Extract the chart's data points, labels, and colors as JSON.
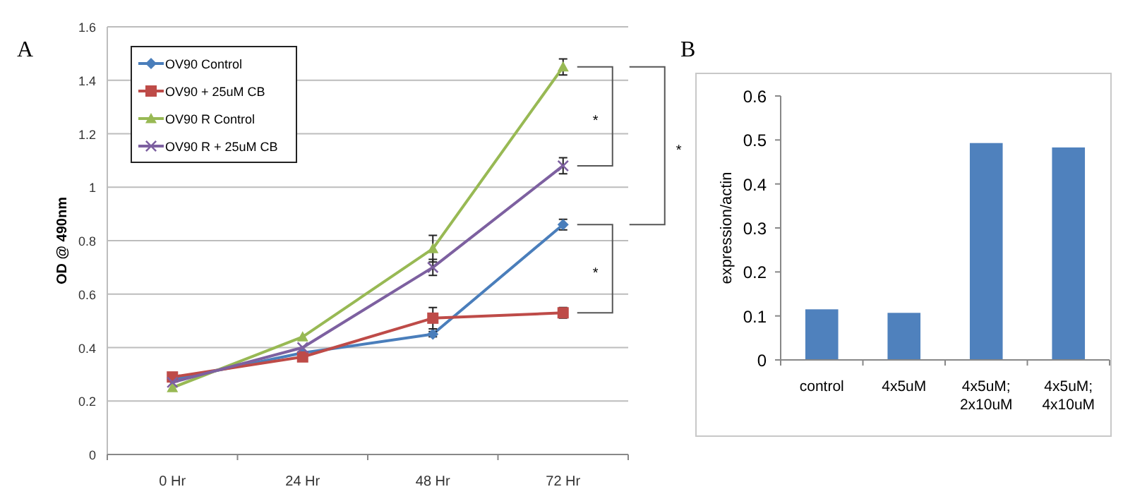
{
  "chart_data": [
    {
      "type": "line",
      "title": "A",
      "ylabel": "OD @ 490nm",
      "categories": [
        "0 Hr",
        "24 Hr",
        "48 Hr",
        "72 Hr"
      ],
      "ylim": [
        0,
        1.6
      ],
      "yticks": [
        0,
        0.2,
        0.4,
        0.6,
        0.8,
        1,
        1.2,
        1.4,
        1.6
      ],
      "grid": "y",
      "legend": "top left",
      "annotations": [
        "*",
        "*",
        "*"
      ],
      "series": [
        {
          "name": "OV90 Control",
          "color": "#4a7ebb",
          "marker": "diamond",
          "values": [
            0.28,
            0.38,
            0.45,
            0.86
          ],
          "errors": [
            null,
            null,
            0.01,
            0.02
          ]
        },
        {
          "name": "OV90 + 25uM CB",
          "color": "#be4b48",
          "marker": "square",
          "values": [
            0.29,
            0.365,
            0.51,
            0.53
          ],
          "errors": [
            null,
            null,
            0.04,
            0.02
          ]
        },
        {
          "name": "OV90 R Control",
          "color": "#98b954",
          "marker": "triangle",
          "values": [
            0.25,
            0.44,
            0.77,
            1.45
          ],
          "errors": [
            null,
            null,
            0.05,
            0.03
          ]
        },
        {
          "name": "OV90 R + 25uM CB",
          "color": "#7d60a0",
          "marker": "cross",
          "values": [
            0.27,
            0.4,
            0.7,
            1.08
          ],
          "errors": [
            null,
            null,
            0.03,
            0.03
          ]
        }
      ]
    },
    {
      "type": "bar",
      "title": "B",
      "ylabel": "expression/actin",
      "categories": [
        "control",
        "4x5uM",
        "4x5uM; 2x10uM",
        "4x5uM; 4x10uM"
      ],
      "values": [
        0.115,
        0.107,
        0.493,
        0.483
      ],
      "color": "#4f81bd",
      "ylim": [
        0,
        0.6
      ],
      "yticks": [
        0,
        0.1,
        0.2,
        0.3,
        0.4,
        0.5,
        0.6
      ]
    }
  ]
}
